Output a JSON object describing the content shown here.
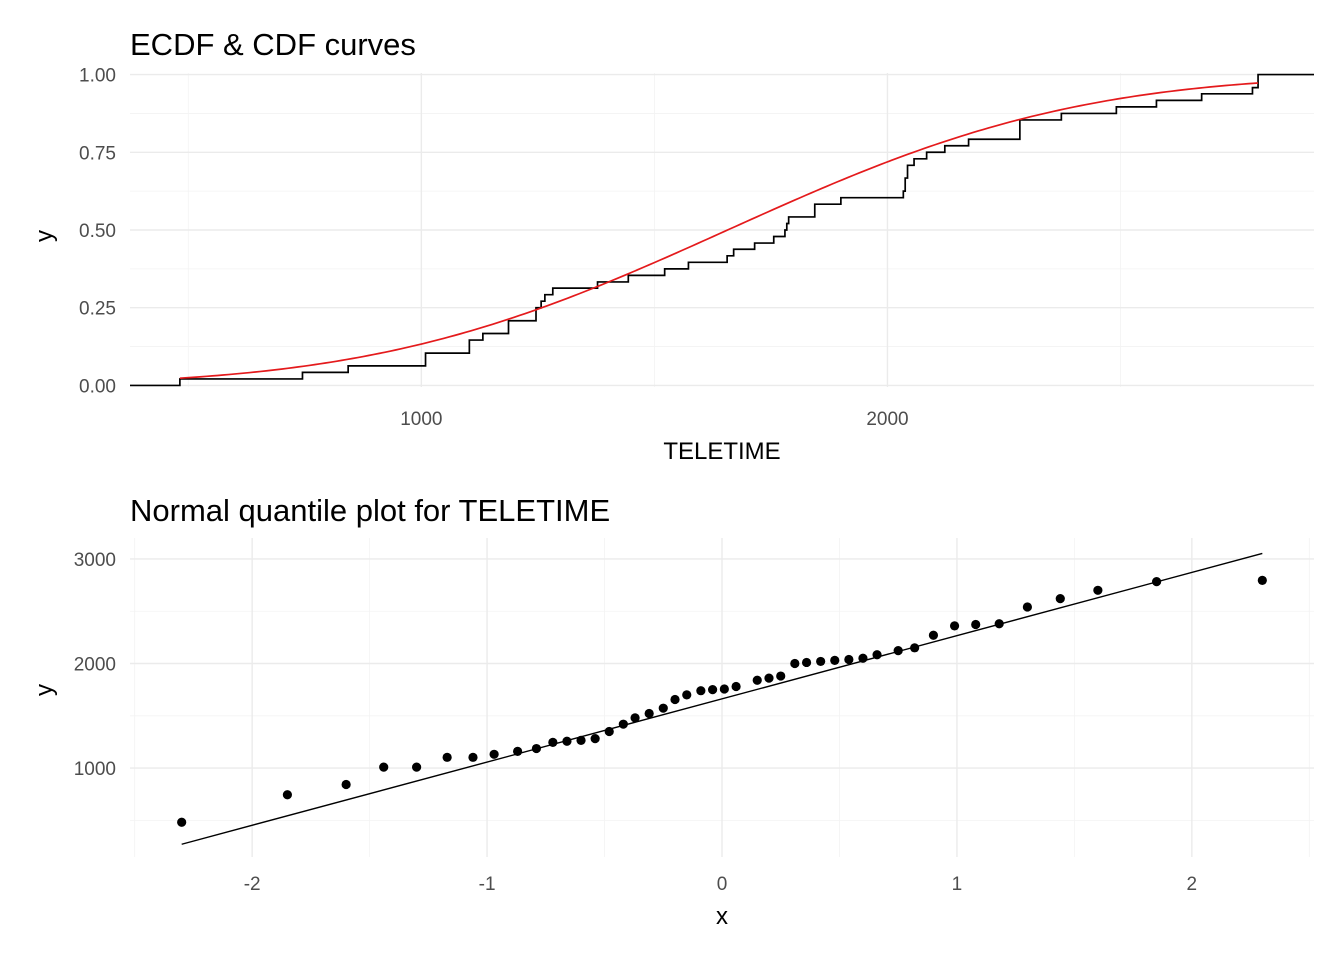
{
  "chart_data": [
    {
      "type": "line",
      "title": "ECDF & CDF curves",
      "xlabel": "TELETIME",
      "ylabel": "y",
      "xlim": [
        375,
        2915
      ],
      "ylim": [
        -0.005,
        1.005
      ],
      "xticks": [
        {
          "v": 1000,
          "label": "1000"
        },
        {
          "v": 2000,
          "label": "2000"
        }
      ],
      "yticks": [
        {
          "v": 0,
          "label": "0.00"
        },
        {
          "v": 0.25,
          "label": "0.25"
        },
        {
          "v": 0.5,
          "label": "0.50"
        },
        {
          "v": 0.75,
          "label": "0.75"
        },
        {
          "v": 1,
          "label": "1.00"
        }
      ],
      "grid": true,
      "series": [
        {
          "kind": "ecdf",
          "color": "#000000",
          "x_range": [
            375,
            2915
          ],
          "x": [
            482,
            745,
            843,
            1009,
            1103,
            1132,
            1187,
            1246,
            1257,
            1265,
            1282,
            1378,
            1444,
            1522,
            1573,
            1656,
            1670,
            1715,
            1756,
            1780,
            1784,
            1788,
            1844,
            1900,
            2034,
            2038,
            2043,
            2057,
            2084,
            2123,
            2174,
            2284,
            2373,
            2491,
            2577,
            2674,
            2783,
            2795
          ],
          "y": [
            0.021,
            0.042,
            0.063,
            0.104,
            0.146,
            0.167,
            0.208,
            0.25,
            0.271,
            0.292,
            0.313,
            0.333,
            0.354,
            0.375,
            0.396,
            0.417,
            0.438,
            0.458,
            0.479,
            0.5,
            0.521,
            0.542,
            0.583,
            0.604,
            0.625,
            0.667,
            0.708,
            0.729,
            0.75,
            0.771,
            0.792,
            0.854,
            0.875,
            0.896,
            0.917,
            0.938,
            0.958,
            1.0
          ]
        },
        {
          "kind": "normal-cdf",
          "color": "#e41a1c",
          "mean": 1657,
          "sd": 591,
          "x_range": [
            482,
            2795
          ]
        }
      ]
    },
    {
      "type": "scatter",
      "title": "Normal quantile plot for TELETIME",
      "xlabel": "x",
      "ylabel": "y",
      "xlim": [
        -2.52,
        2.52
      ],
      "ylim": [
        150,
        3200
      ],
      "xticks": [
        {
          "v": -2,
          "label": "-2"
        },
        {
          "v": -1,
          "label": "-1"
        },
        {
          "v": 0,
          "label": "0"
        },
        {
          "v": 1,
          "label": "1"
        },
        {
          "v": 2,
          "label": "2"
        }
      ],
      "yticks": [
        {
          "v": 1000,
          "label": "1000"
        },
        {
          "v": 2000,
          "label": "2000"
        },
        {
          "v": 3000,
          "label": "3000"
        }
      ],
      "grid": true,
      "point_color": "#000000",
      "points": [
        [
          -2.3,
          482
        ],
        [
          -1.85,
          745
        ],
        [
          -1.6,
          843
        ],
        [
          -1.44,
          1009
        ],
        [
          -1.3,
          1009
        ],
        [
          -1.17,
          1103
        ],
        [
          -1.06,
          1103
        ],
        [
          -0.97,
          1132
        ],
        [
          -0.87,
          1160
        ],
        [
          -0.79,
          1187
        ],
        [
          -0.72,
          1246
        ],
        [
          -0.66,
          1257
        ],
        [
          -0.6,
          1265
        ],
        [
          -0.54,
          1282
        ],
        [
          -0.48,
          1350
        ],
        [
          -0.42,
          1420
        ],
        [
          -0.37,
          1480
        ],
        [
          -0.31,
          1522
        ],
        [
          -0.25,
          1573
        ],
        [
          -0.2,
          1656
        ],
        [
          -0.15,
          1700
        ],
        [
          -0.09,
          1740
        ],
        [
          -0.04,
          1750
        ],
        [
          0.01,
          1756
        ],
        [
          0.06,
          1780
        ],
        [
          0.15,
          1840
        ],
        [
          0.2,
          1860
        ],
        [
          0.25,
          1880
        ],
        [
          0.31,
          2000
        ],
        [
          0.36,
          2010
        ],
        [
          0.42,
          2020
        ],
        [
          0.48,
          2030
        ],
        [
          0.54,
          2038
        ],
        [
          0.6,
          2050
        ],
        [
          0.66,
          2084
        ],
        [
          0.75,
          2123
        ],
        [
          0.82,
          2150
        ],
        [
          0.9,
          2270
        ],
        [
          0.99,
          2360
        ],
        [
          1.08,
          2373
        ],
        [
          1.18,
          2380
        ],
        [
          1.3,
          2540
        ],
        [
          1.44,
          2620
        ],
        [
          1.6,
          2700
        ],
        [
          1.85,
          2783
        ],
        [
          2.3,
          2795
        ]
      ],
      "reference_line": {
        "color": "#000000",
        "x": [
          -2.3,
          2.3
        ],
        "y": [
          272,
          3052
        ]
      }
    }
  ]
}
